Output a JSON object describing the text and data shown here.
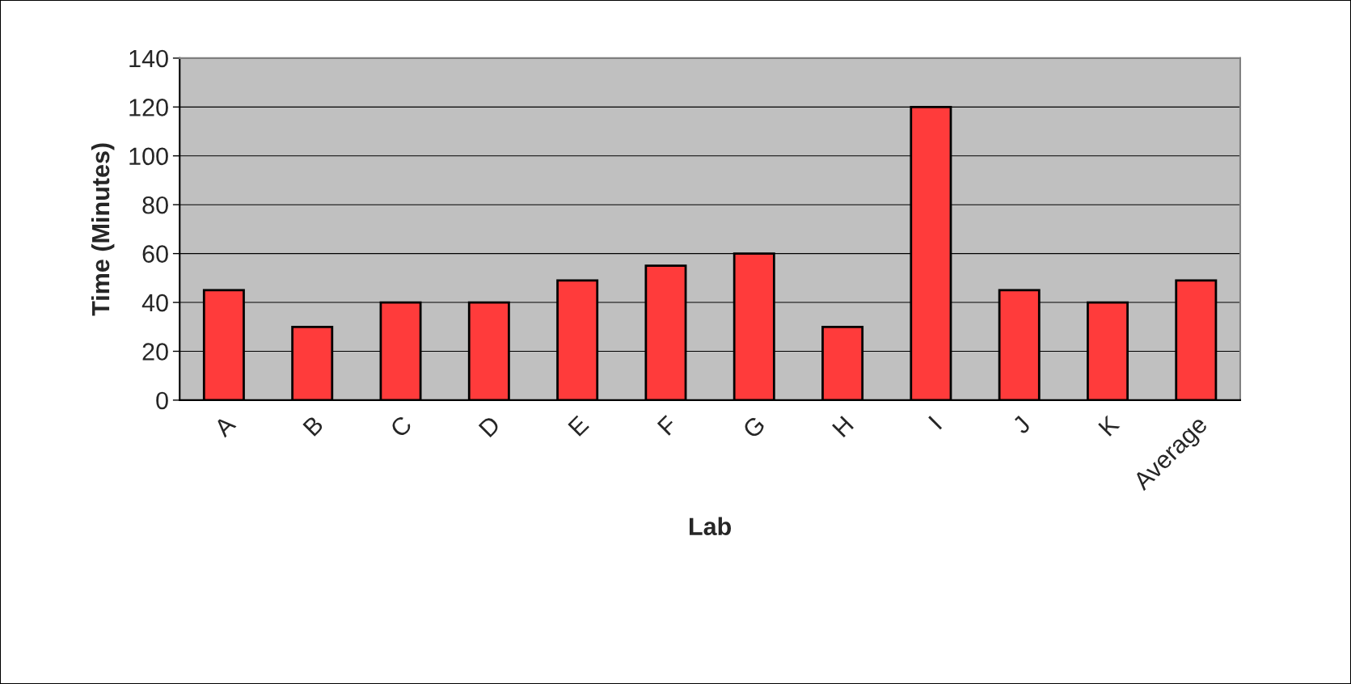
{
  "chart_data": {
    "type": "bar",
    "xlabel": "Lab",
    "ylabel": "Time (Minutes)",
    "categories": [
      "A",
      "B",
      "C",
      "D",
      "E",
      "F",
      "G",
      "H",
      "I",
      "J",
      "K",
      "Average"
    ],
    "values": [
      45,
      30,
      40,
      40,
      49,
      55,
      60,
      30,
      120,
      45,
      40,
      49
    ],
    "color": "#ff3b3b",
    "ylim": [
      0,
      140
    ],
    "yticks": [
      0,
      20,
      40,
      60,
      80,
      100,
      120,
      140
    ],
    "grid": "y",
    "legend": false
  }
}
